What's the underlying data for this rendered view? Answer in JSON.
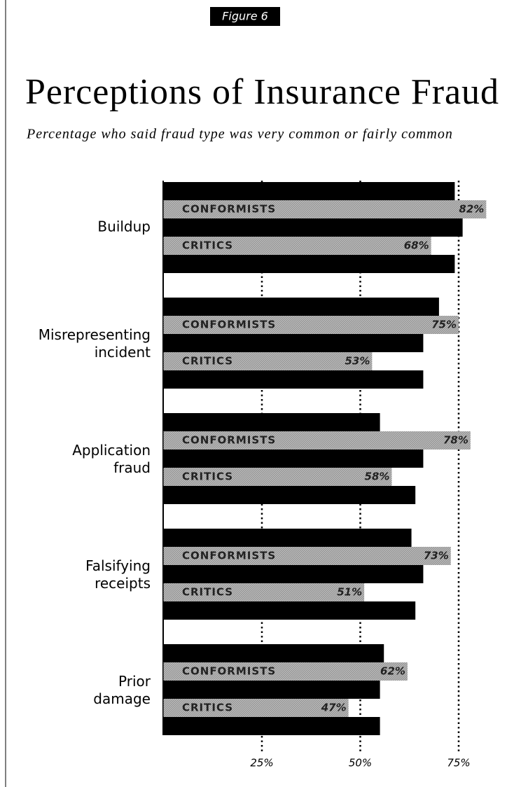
{
  "chart_data": {
    "type": "bar",
    "figure_label": "Figure 6",
    "title": "Perceptions of Insurance Fraud",
    "subtitle": "Percentage who said fraud type was very common or fairly common",
    "categories": [
      "Buildup",
      "Misrepresenting incident",
      "Application fraud",
      "Falsifying receipts",
      "Prior damage"
    ],
    "series": [
      {
        "color": "#000000",
        "values": [
          74,
          70,
          55,
          63,
          56
        ]
      },
      {
        "name": "CONFORMISTS",
        "color": "#8c8c8c",
        "values": [
          82,
          75,
          78,
          73,
          62
        ],
        "value_labels": [
          "82%",
          "75%",
          "78%",
          "73%",
          "62%"
        ]
      },
      {
        "color": "#000000",
        "values": [
          76,
          66,
          66,
          66,
          55
        ]
      },
      {
        "name": "CRITICS",
        "color": "#8c8c8c",
        "values": [
          68,
          53,
          58,
          51,
          47
        ],
        "value_labels": [
          "68%",
          "53%",
          "58%",
          "51%",
          "47%"
        ]
      },
      {
        "color": "#000000",
        "values": [
          74,
          66,
          64,
          64,
          55
        ]
      }
    ],
    "xlim": [
      0,
      90
    ],
    "xticks": [
      {
        "value": 25,
        "label": "25%"
      },
      {
        "value": 50,
        "label": "50%"
      },
      {
        "value": 75,
        "label": "75%"
      }
    ],
    "grid": true
  }
}
